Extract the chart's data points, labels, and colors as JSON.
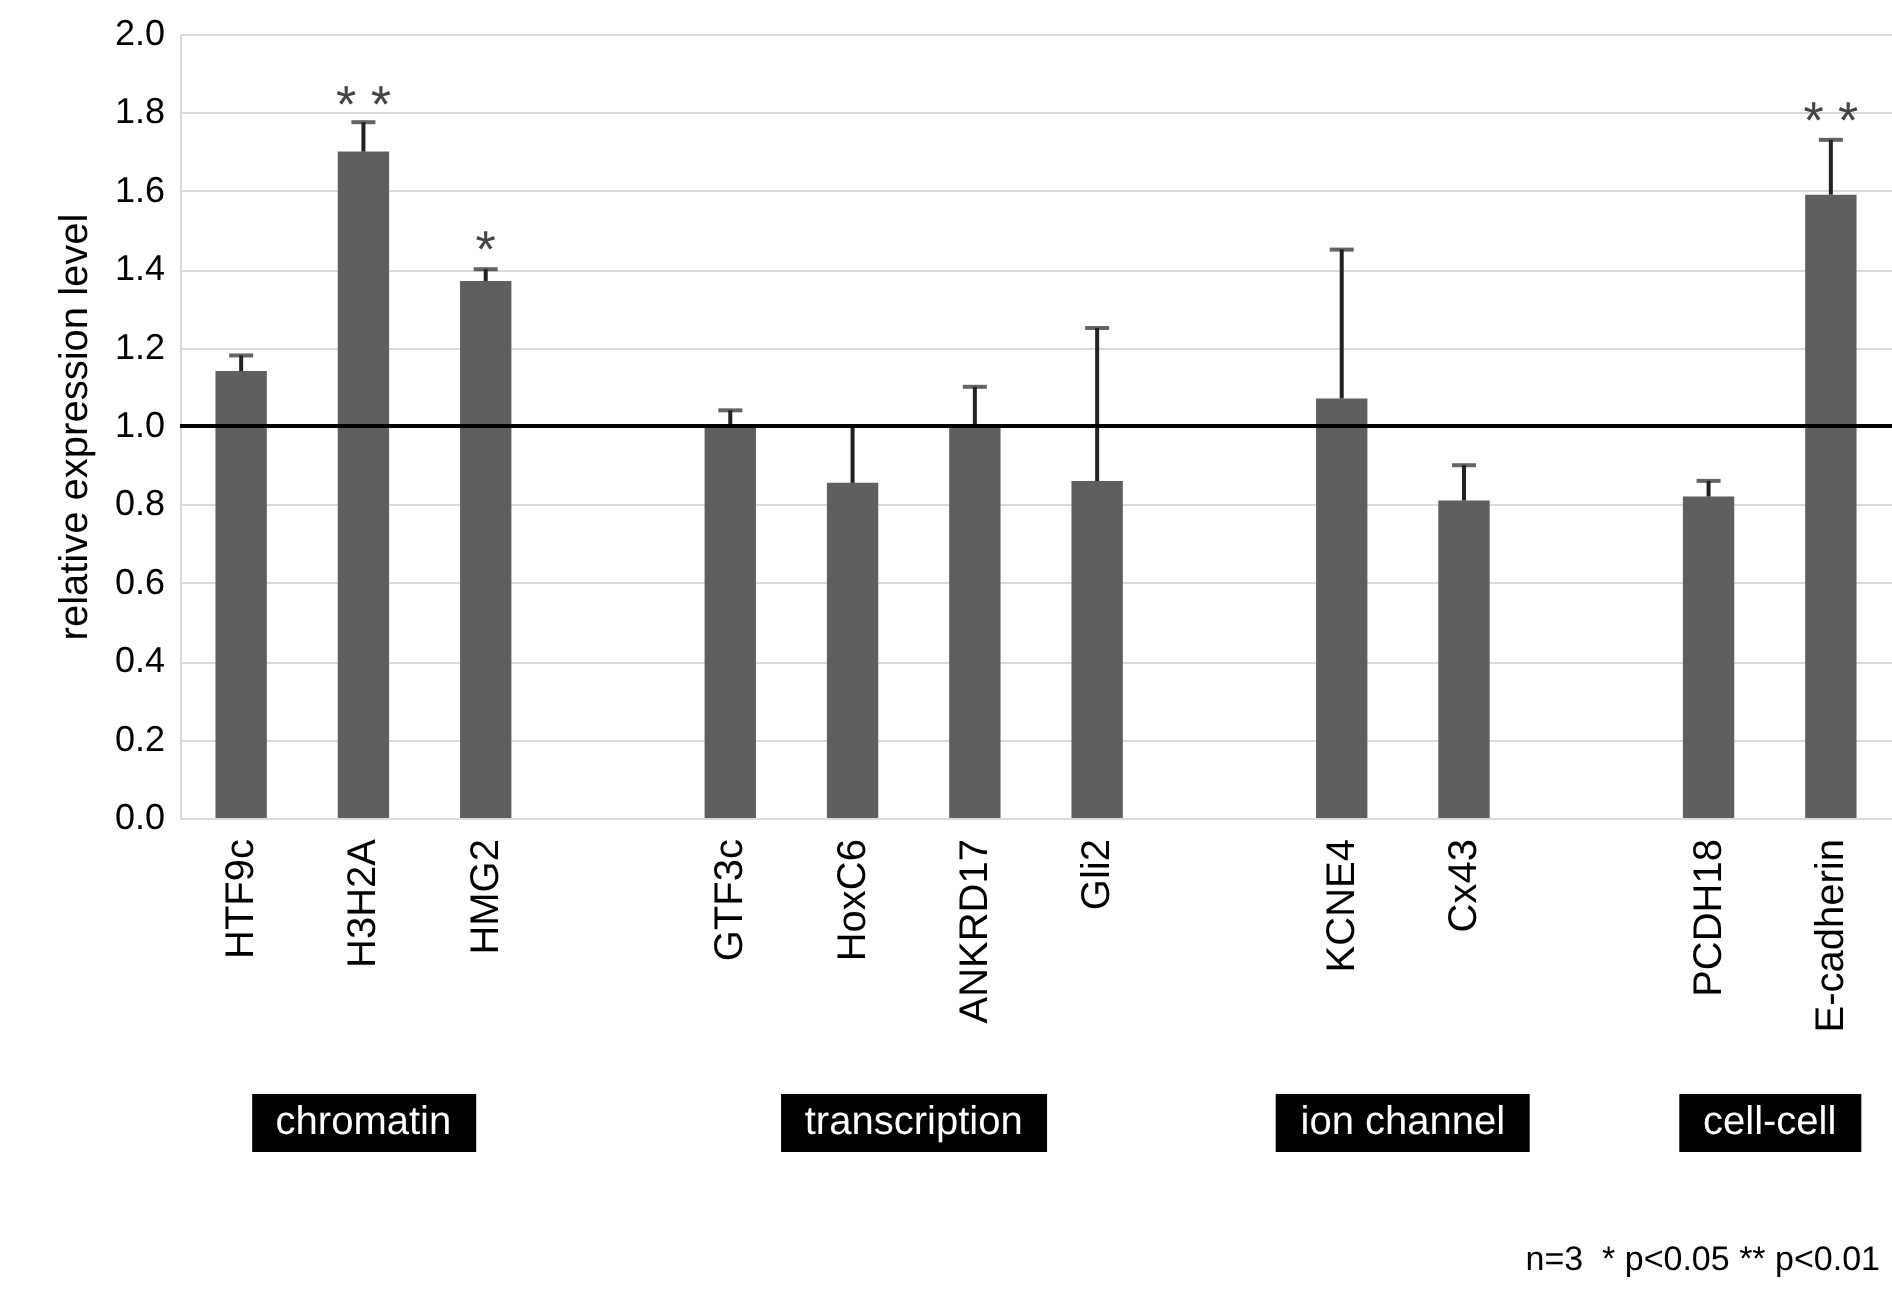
{
  "chart_data": {
    "type": "bar",
    "ylabel": "relative expression level",
    "categories": [
      "HTF9c",
      "H3H2A",
      "HMG2",
      null,
      "GTF3c",
      "HoxC6",
      "ANKRD17",
      "Gli2",
      null,
      "KCNE4",
      "Cx43",
      null,
      "PCDH18",
      "E-cadherin"
    ],
    "values": [
      1.14,
      1.7,
      1.37,
      null,
      1.0,
      0.855,
      1.0,
      0.86,
      null,
      1.07,
      0.81,
      null,
      0.82,
      1.59
    ],
    "errors": [
      [
        1.14,
        1.18
      ],
      [
        1.7,
        1.775
      ],
      [
        1.37,
        1.4
      ],
      null,
      [
        1.0,
        1.04
      ],
      [
        0.855,
        1.0
      ],
      [
        1.0,
        1.1
      ],
      [
        0.86,
        1.25
      ],
      null,
      [
        1.07,
        1.45
      ],
      [
        0.81,
        0.9
      ],
      null,
      [
        0.82,
        0.86
      ],
      [
        1.59,
        1.73
      ]
    ],
    "color": "#5f5f5f",
    "ylim": [
      0,
      2
    ],
    "yticks": [
      {
        "value": 0,
        "label": "0.0"
      },
      {
        "value": 0.2,
        "label": "0.2"
      },
      {
        "value": 0.4,
        "label": "0.4"
      },
      {
        "value": 0.6,
        "label": "0.6"
      },
      {
        "value": 0.8,
        "label": "0.8"
      },
      {
        "value": 1,
        "label": "1.0"
      },
      {
        "value": 1.2,
        "label": "1.2"
      },
      {
        "value": 1.4,
        "label": "1.4"
      },
      {
        "value": 1.6,
        "label": "1.6"
      },
      {
        "value": 1.8,
        "label": "1.8"
      },
      {
        "value": 2,
        "label": "2.0"
      }
    ],
    "grid": "y",
    "ref_lines": [
      {
        "axis": "y",
        "value": 1,
        "color": "#000000"
      }
    ],
    "annotations": [
      "chromatin",
      "transcription",
      "ion channel",
      "cell-cell",
      "n=3  * p<0.05 ** p<0.01",
      {
        "text": "* *",
        "x": "H3H2A",
        "y": 1.79
      },
      {
        "text": "*",
        "x": "HMG2",
        "y": 1.42
      },
      {
        "text": "* *",
        "x": "E-cadherin",
        "y": 1.75
      }
    ]
  }
}
